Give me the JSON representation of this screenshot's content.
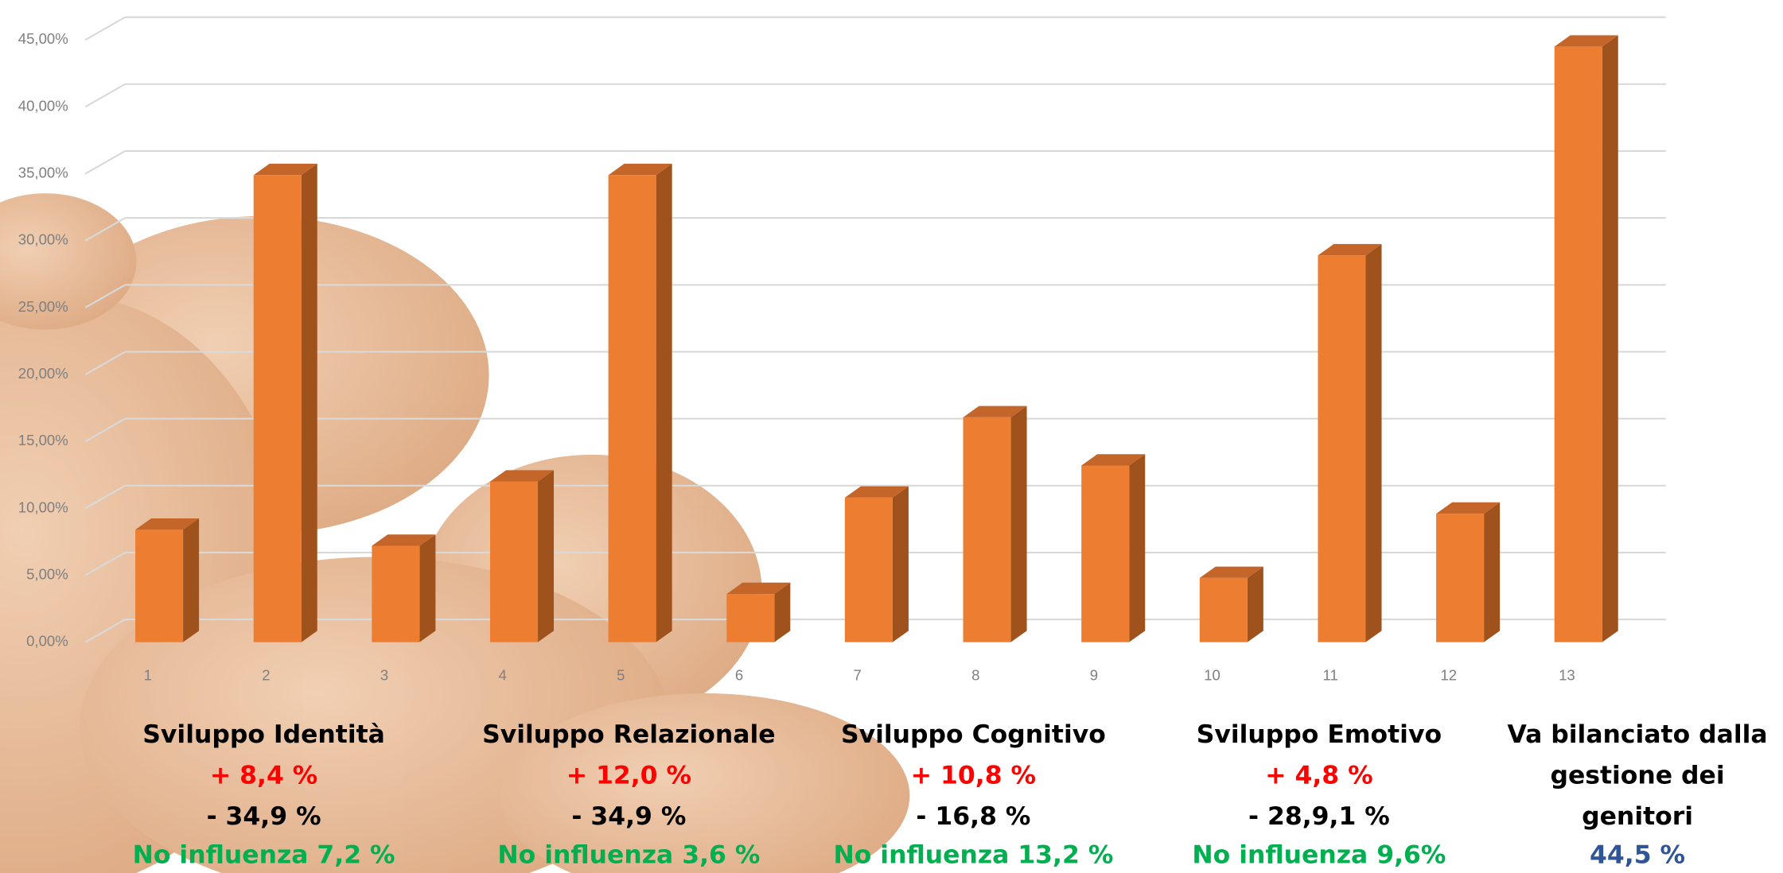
{
  "chart_data": {
    "type": "bar3d",
    "categories": [
      "1",
      "2",
      "3",
      "4",
      "5",
      "6",
      "7",
      "8",
      "9",
      "10",
      "11",
      "12",
      "13"
    ],
    "values": [
      8.4,
      34.9,
      7.2,
      12.0,
      34.9,
      3.6,
      10.8,
      16.8,
      13.2,
      4.8,
      28.9,
      9.6,
      44.5
    ],
    "color": "#ed7d31",
    "ylim": [
      0,
      45
    ],
    "yticks": [
      {
        "value": 0,
        "label": "0,00%"
      },
      {
        "value": 5,
        "label": "5,00%"
      },
      {
        "value": 10,
        "label": "10,00%"
      },
      {
        "value": 15,
        "label": "15,00%"
      },
      {
        "value": 20,
        "label": "20,00%"
      },
      {
        "value": 25,
        "label": "25,00%"
      },
      {
        "value": 30,
        "label": "30,00%"
      },
      {
        "value": 35,
        "label": "35,00%"
      },
      {
        "value": 40,
        "label": "40,00%"
      },
      {
        "value": 45,
        "label": "45,00%"
      }
    ],
    "grid": true,
    "annotations": [
      {
        "lines": [
          {
            "text": "Sviluppo Identità",
            "color": "#000000"
          },
          {
            "text": "+ 8,4 %",
            "color": "#ff0000"
          },
          {
            "text": "- 34,9 %",
            "color": "#000000"
          },
          {
            "text": "No influenza 7,2 %",
            "color": "#00b050"
          }
        ]
      },
      {
        "lines": [
          {
            "text": "Sviluppo Relazionale",
            "color": "#000000"
          },
          {
            "text": "+ 12,0 %",
            "color": "#ff0000"
          },
          {
            "text": "- 34,9 %",
            "color": "#000000"
          },
          {
            "text": "No influenza 3,6 %",
            "color": "#00b050"
          }
        ]
      },
      {
        "lines": [
          {
            "text": "Sviluppo Cognitivo",
            "color": "#000000"
          },
          {
            "text": "+ 10,8 %",
            "color": "#ff0000"
          },
          {
            "text": "- 16,8 %",
            "color": "#000000"
          },
          {
            "text": "No influenza 13,2 %",
            "color": "#00b050"
          }
        ]
      },
      {
        "lines": [
          {
            "text": "Sviluppo Emotivo",
            "color": "#000000"
          },
          {
            "text": "+ 4,8 %",
            "color": "#ff0000"
          },
          {
            "text": "- 28,9,1 %",
            "color": "#000000"
          },
          {
            "text": "No influenza  9,6%",
            "color": "#00b050"
          }
        ]
      },
      {
        "lines": [
          {
            "text": "Va bilanciato dalla",
            "color": "#000000"
          },
          {
            "text": "gestione dei",
            "color": "#000000"
          },
          {
            "text": "genitori",
            "color": "#000000"
          },
          {
            "text": "44,5 %",
            "color": "#2f5597"
          }
        ]
      }
    ]
  }
}
